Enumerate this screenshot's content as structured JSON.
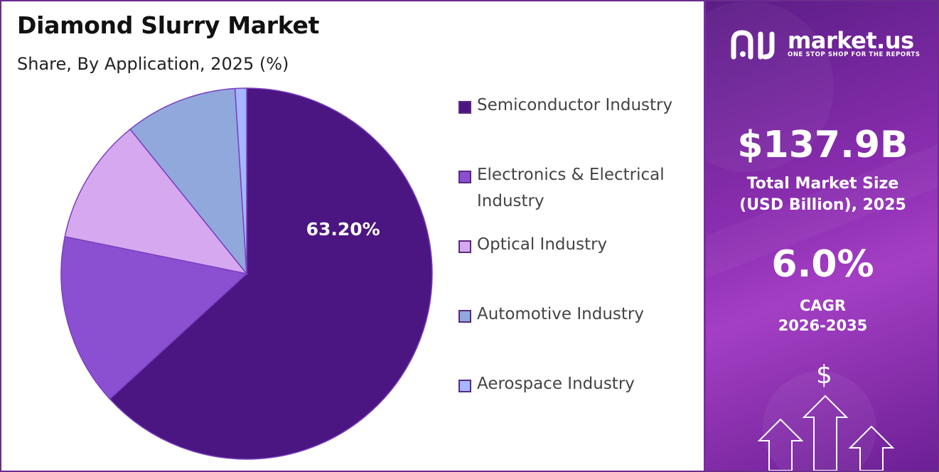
{
  "header": {
    "title": "Diamond Slurry Market",
    "subtitle": "Share, By Application, 2025 (%)"
  },
  "chart_data": {
    "type": "pie",
    "title": "Diamond Slurry Market",
    "subtitle": "Share, By Application, 2025 (%)",
    "categories": [
      "Semiconductor Industry",
      "Electronics & Electrical Industry",
      "Optical Industry",
      "Automotive Industry",
      "Aerospace Industry"
    ],
    "values": [
      63.2,
      15.0,
      11.0,
      9.8,
      1.0
    ],
    "colors": [
      "#4b1681",
      "#8b4fd1",
      "#d6a8ef",
      "#90a8dc",
      "#a6b6ff"
    ],
    "data_labels": [
      "63.20%",
      "",
      "",
      "",
      ""
    ],
    "legend_position": "right"
  },
  "legend": {
    "items": [
      {
        "label_line1": "Semiconductor Industry",
        "label_line2": ""
      },
      {
        "label_line1": "Electronics & Electrical",
        "label_line2": "Industry"
      },
      {
        "label_line1": "Optical Industry",
        "label_line2": ""
      },
      {
        "label_line1": "Automotive Industry",
        "label_line2": ""
      },
      {
        "label_line1": "Aerospace Industry",
        "label_line2": ""
      }
    ]
  },
  "sidebar": {
    "brand": "market.us",
    "tagline": "ONE STOP SHOP FOR THE REPORTS",
    "market_size_value": "$137.9B",
    "market_size_label_1": "Total Market Size",
    "market_size_label_2": "(USD Billion), 2025",
    "cagr_value": "6.0%",
    "cagr_label_1": "CAGR",
    "cagr_label_2": "2026-2035",
    "dollar_symbol": "$",
    "background_color": "#8e2fb3"
  }
}
